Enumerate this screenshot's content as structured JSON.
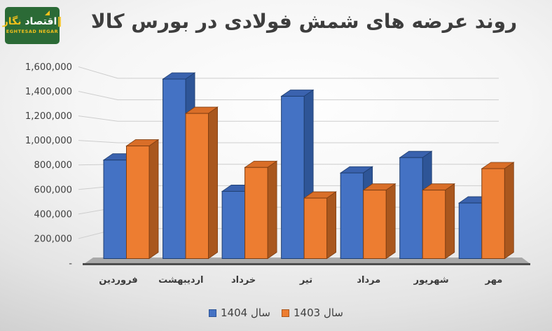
{
  "logo": {
    "accent_bars": "‖",
    "persian": "اقتصاد",
    "persian_accent": "نگار",
    "latin": "EGHTESAD NEGAR",
    "bg_color": "#2b6a36",
    "accent_color": "#f3c11c",
    "text_color": "#ffffff"
  },
  "title": "روند عرضه های شمش فولادی در بورس کالا",
  "chart_data": {
    "type": "bar",
    "style": "3d-clustered-column",
    "title": "روند عرضه های شمش فولادی در بورس کالا",
    "categories": [
      "فروردین",
      "اردیبهشت",
      "خرداد",
      "تیر",
      "مرداد",
      "شهریور",
      "مهر"
    ],
    "series": [
      {
        "key": "1404",
        "name": "سال 1404",
        "color": "#4472C4",
        "top_color": "#3A62AE",
        "side_color": "#2E5597",
        "border_color": "#1F3E70",
        "values": [
          840000,
          1500000,
          585000,
          1360000,
          735000,
          860000,
          490000
        ]
      },
      {
        "key": "1403",
        "name": "سال 1403",
        "color": "#ED7D31",
        "top_color": "#D96E28",
        "side_color": "#A9571E",
        "border_color": "#7F3E12",
        "values": [
          955000,
          1220000,
          780000,
          530000,
          595000,
          595000,
          770000
        ]
      }
    ],
    "y_axis": {
      "min": 0,
      "max": 1600000,
      "tick_step": 200000,
      "ticks": [
        {
          "label": "1,600,000",
          "value": 1600000
        },
        {
          "label": "1,400,000",
          "value": 1400000
        },
        {
          "label": "1,200,000",
          "value": 1200000
        },
        {
          "label": "1,000,000",
          "value": 1000000
        },
        {
          "label": "800,000",
          "value": 800000
        },
        {
          "label": "600,000",
          "value": 600000
        },
        {
          "label": "400,000",
          "value": 400000
        },
        {
          "label": "200,000",
          "value": 200000
        },
        {
          "label": "-",
          "value": 0
        }
      ]
    },
    "gridlines": true,
    "legend_position": "bottom",
    "colors": {
      "gridline": "#cdcdcd",
      "floor": "#a9a9a9",
      "floor_edge": "#4e4e4e",
      "axis_text": "#404040",
      "category_text": "#3a3a3a"
    }
  }
}
